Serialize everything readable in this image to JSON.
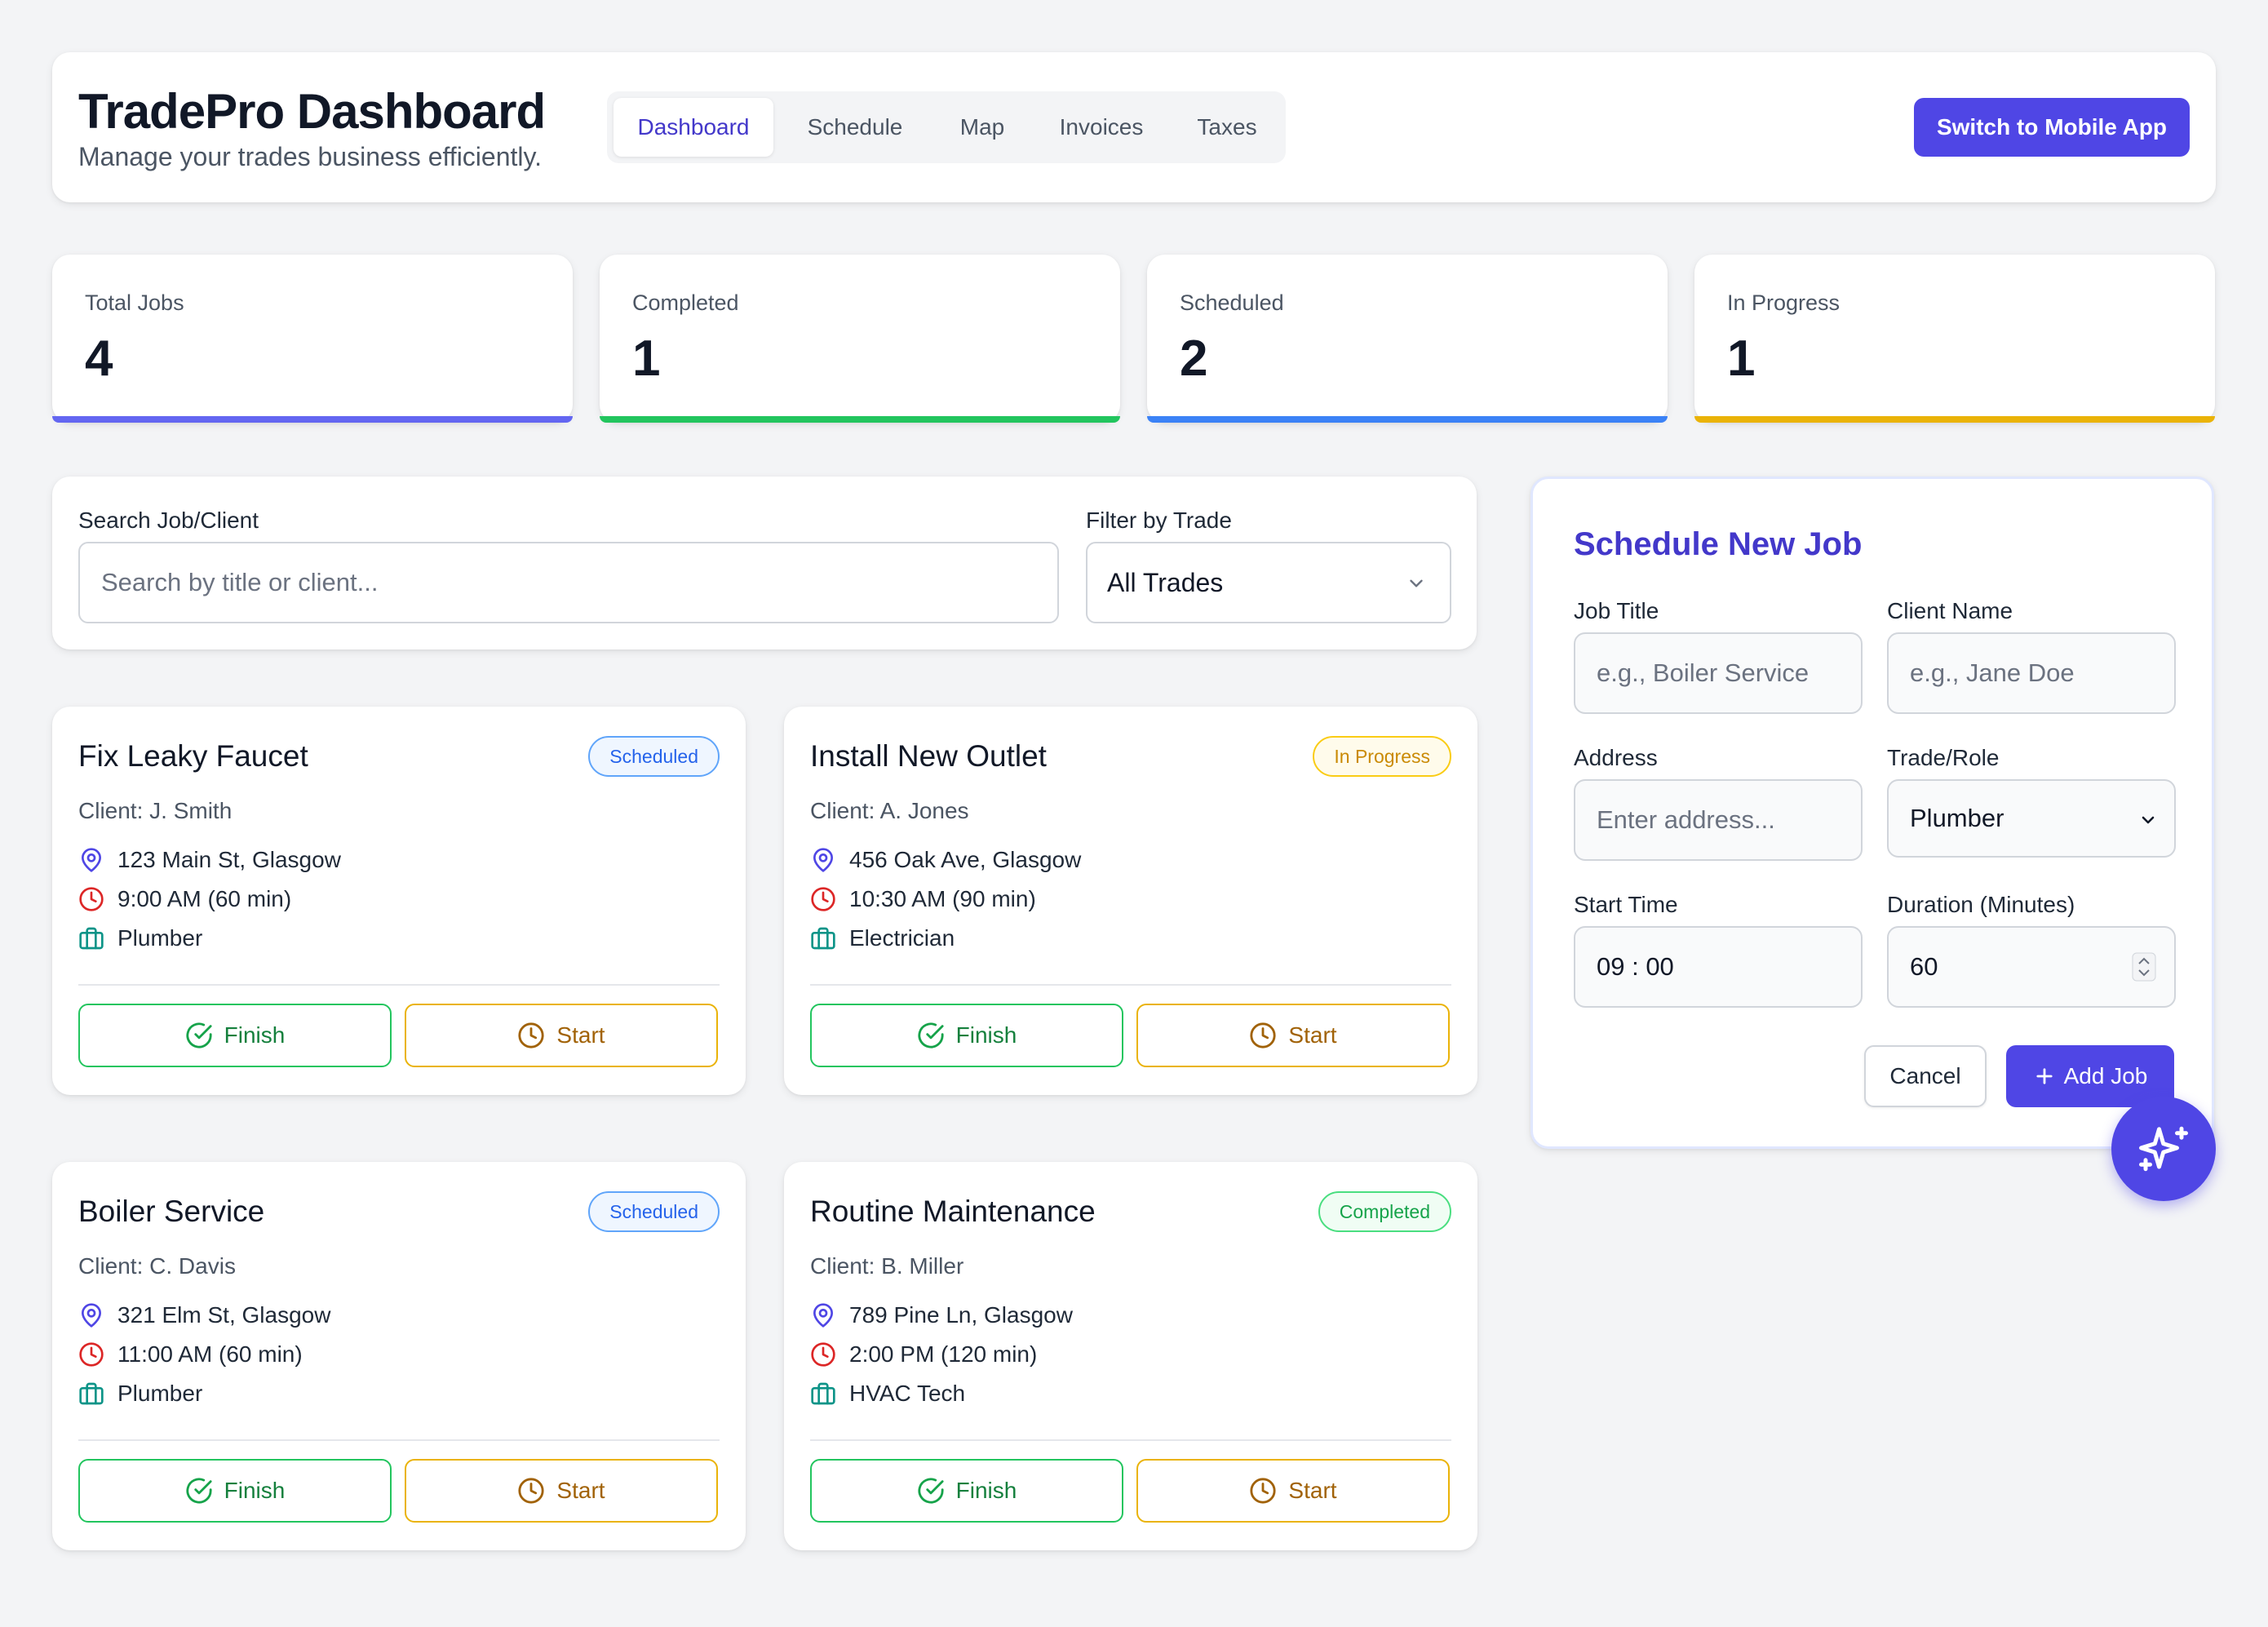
{
  "header": {
    "title": "TradePro Dashboard",
    "subtitle": "Manage your trades business efficiently.",
    "tabs": [
      "Dashboard",
      "Schedule",
      "Map",
      "Invoices",
      "Taxes"
    ],
    "active_tab": "Dashboard",
    "switch_label": "Switch to Mobile App"
  },
  "stats": [
    {
      "label": "Total Jobs",
      "value": "4",
      "color": "#6366f1"
    },
    {
      "label": "Completed",
      "value": "1",
      "color": "#22c55e"
    },
    {
      "label": "Scheduled",
      "value": "2",
      "color": "#3b82f6"
    },
    {
      "label": "In Progress",
      "value": "1",
      "color": "#eab308"
    }
  ],
  "search": {
    "label": "Search Job/Client",
    "placeholder": "Search by title or client...",
    "filter_label": "Filter by Trade",
    "filter_value": "All Trades"
  },
  "jobs": [
    {
      "title": "Fix Leaky Faucet",
      "status": "Scheduled",
      "client": "Client: J. Smith",
      "address": "123 Main St, Glasgow",
      "time": "9:00 AM (60 min)",
      "trade": "Plumber",
      "finish": "Finish",
      "start": "Start"
    },
    {
      "title": "Install New Outlet",
      "status": "In Progress",
      "client": "Client: A. Jones",
      "address": "456 Oak Ave, Glasgow",
      "time": "10:30 AM (90 min)",
      "trade": "Electrician",
      "finish": "Finish",
      "start": "Start"
    },
    {
      "title": "Boiler Service",
      "status": "Scheduled",
      "client": "Client: C. Davis",
      "address": "321 Elm St, Glasgow",
      "time": "11:00 AM (60 min)",
      "trade": "Plumber",
      "finish": "Finish",
      "start": "Start"
    },
    {
      "title": "Routine Maintenance",
      "status": "Completed",
      "client": "Client: B. Miller",
      "address": "789 Pine Ln, Glasgow",
      "time": "2:00 PM (120 min)",
      "trade": "HVAC Tech",
      "finish": "Finish",
      "start": "Start"
    }
  ],
  "form": {
    "title": "Schedule New Job",
    "job_title_label": "Job Title",
    "job_title_placeholder": "e.g., Boiler Service",
    "client_label": "Client Name",
    "client_placeholder": "e.g., Jane Doe",
    "address_label": "Address",
    "address_placeholder": "Enter address...",
    "trade_label": "Trade/Role",
    "trade_value": "Plumber",
    "start_label": "Start Time",
    "start_value": "09 : 00",
    "duration_label": "Duration (Minutes)",
    "duration_value": "60",
    "cancel_label": "Cancel",
    "add_label": "Add Job"
  },
  "icons": {
    "location": "map-pin-icon",
    "time": "clock-icon",
    "trade": "briefcase-icon",
    "finish": "check-circle-icon",
    "start": "clock-icon",
    "fab": "sparkles-icon"
  }
}
